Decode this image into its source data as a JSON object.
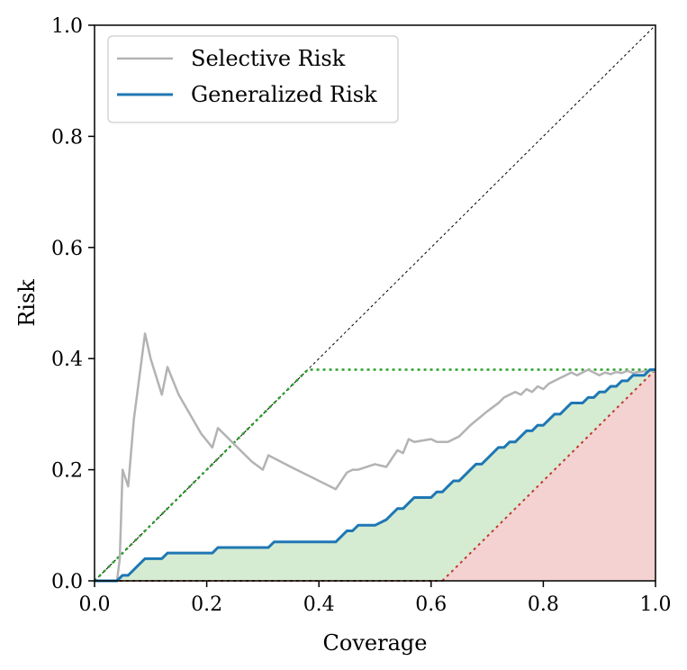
{
  "chart_data": {
    "type": "line",
    "xlabel": "Coverage",
    "ylabel": "Risk",
    "xlim": [
      0.0,
      1.0
    ],
    "ylim": [
      0.0,
      1.0
    ],
    "xticks": [
      "0.0",
      "0.2",
      "0.4",
      "0.6",
      "0.8",
      "1.0"
    ],
    "yticks": [
      "0.0",
      "0.2",
      "0.4",
      "0.6",
      "0.8",
      "1.0"
    ],
    "legend_position": "top-left",
    "colors": {
      "selective": "#b3b3b3",
      "generalized": "#1f77b4",
      "green_fill": "#d5ecd2",
      "red_fill": "#f4d2d2",
      "green_dotted": "#2ca02c",
      "red_dotted": "#c0392b",
      "diagonal": "#000000"
    },
    "series": [
      {
        "name": "Selective Risk",
        "x": [
          0.0,
          0.04,
          0.045,
          0.05,
          0.06,
          0.07,
          0.09,
          0.1,
          0.12,
          0.13,
          0.15,
          0.17,
          0.19,
          0.21,
          0.22,
          0.25,
          0.28,
          0.3,
          0.31,
          0.35,
          0.4,
          0.43,
          0.45,
          0.46,
          0.47,
          0.5,
          0.52,
          0.53,
          0.54,
          0.55,
          0.56,
          0.57,
          0.6,
          0.61,
          0.62,
          0.63,
          0.65,
          0.67,
          0.7,
          0.72,
          0.73,
          0.74,
          0.75,
          0.76,
          0.77,
          0.78,
          0.79,
          0.8,
          0.81,
          0.82,
          0.83,
          0.84,
          0.85,
          0.86,
          0.87,
          0.88,
          0.89,
          0.9,
          0.91,
          0.92,
          0.93,
          0.94,
          0.95,
          0.96,
          0.97,
          0.98,
          0.99,
          1.0
        ],
        "values": [
          0.0,
          0.0,
          0.04,
          0.2,
          0.17,
          0.29,
          0.445,
          0.4,
          0.335,
          0.385,
          0.335,
          0.3,
          0.265,
          0.24,
          0.275,
          0.245,
          0.215,
          0.2,
          0.226,
          0.205,
          0.18,
          0.165,
          0.195,
          0.2,
          0.2,
          0.21,
          0.205,
          0.22,
          0.235,
          0.23,
          0.255,
          0.25,
          0.255,
          0.25,
          0.25,
          0.25,
          0.26,
          0.28,
          0.305,
          0.32,
          0.33,
          0.335,
          0.34,
          0.335,
          0.345,
          0.34,
          0.35,
          0.345,
          0.355,
          0.36,
          0.365,
          0.37,
          0.375,
          0.37,
          0.375,
          0.38,
          0.375,
          0.37,
          0.375,
          0.372,
          0.376,
          0.374,
          0.378,
          0.374,
          0.376,
          0.377,
          0.378,
          0.378
        ]
      },
      {
        "name": "Generalized Risk",
        "x": [
          0.0,
          0.04,
          0.05,
          0.06,
          0.08,
          0.09,
          0.12,
          0.13,
          0.21,
          0.22,
          0.31,
          0.32,
          0.43,
          0.45,
          0.46,
          0.47,
          0.5,
          0.52,
          0.53,
          0.54,
          0.55,
          0.56,
          0.57,
          0.6,
          0.61,
          0.62,
          0.63,
          0.64,
          0.65,
          0.67,
          0.68,
          0.69,
          0.7,
          0.71,
          0.72,
          0.73,
          0.74,
          0.75,
          0.76,
          0.77,
          0.78,
          0.79,
          0.8,
          0.81,
          0.82,
          0.83,
          0.84,
          0.85,
          0.86,
          0.87,
          0.88,
          0.89,
          0.9,
          0.91,
          0.92,
          0.93,
          0.94,
          0.95,
          0.96,
          0.97,
          0.98,
          0.99,
          1.0
        ],
        "values": [
          0.0,
          0.0,
          0.01,
          0.01,
          0.03,
          0.04,
          0.04,
          0.05,
          0.05,
          0.06,
          0.06,
          0.07,
          0.07,
          0.09,
          0.09,
          0.1,
          0.1,
          0.11,
          0.12,
          0.13,
          0.13,
          0.14,
          0.15,
          0.15,
          0.16,
          0.16,
          0.17,
          0.18,
          0.18,
          0.2,
          0.21,
          0.21,
          0.22,
          0.23,
          0.24,
          0.24,
          0.25,
          0.25,
          0.26,
          0.27,
          0.27,
          0.28,
          0.28,
          0.29,
          0.3,
          0.3,
          0.31,
          0.32,
          0.32,
          0.32,
          0.33,
          0.33,
          0.34,
          0.34,
          0.35,
          0.35,
          0.36,
          0.36,
          0.37,
          0.37,
          0.37,
          0.38,
          0.38
        ]
      }
    ],
    "reference": {
      "full_risk": 0.38,
      "oracle_start_coverage": 0.62
    }
  }
}
